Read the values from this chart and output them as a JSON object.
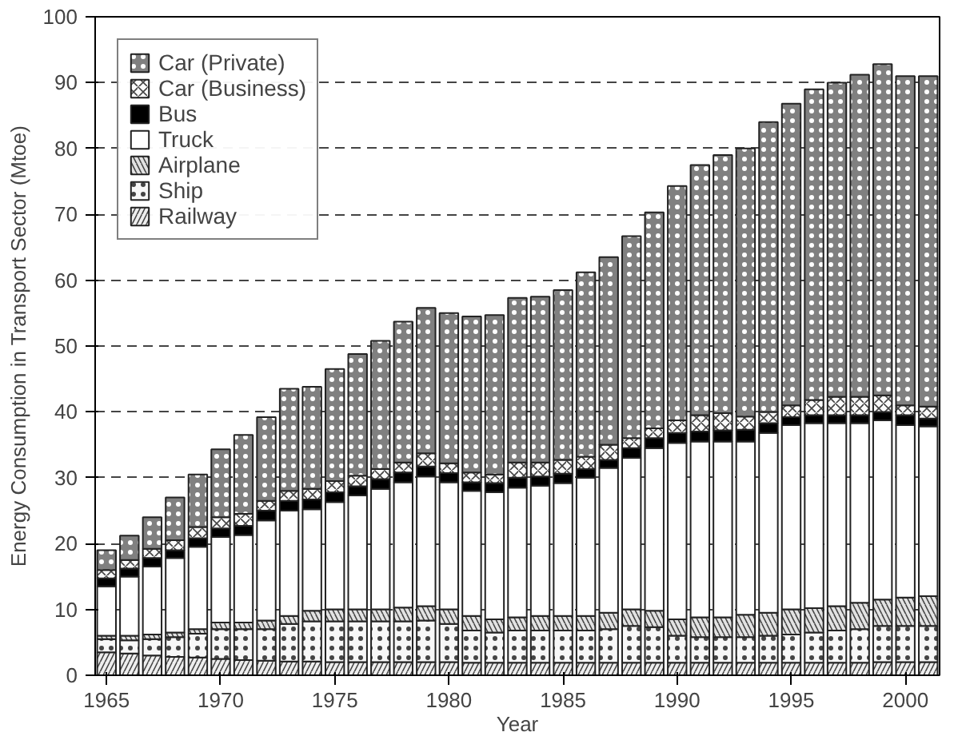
{
  "chart_data": {
    "type": "bar",
    "stacked": true,
    "xlabel": "Year",
    "ylabel": "Energy Consumption in Transport Sector (Mtoe)",
    "x": [
      1965,
      1966,
      1967,
      1968,
      1969,
      1970,
      1971,
      1972,
      1973,
      1974,
      1975,
      1976,
      1977,
      1978,
      1979,
      1980,
      1981,
      1982,
      1983,
      1984,
      1985,
      1986,
      1987,
      1988,
      1989,
      1990,
      1991,
      1992,
      1993,
      1994,
      1995,
      1996,
      1997,
      1998,
      1999,
      2000,
      2001
    ],
    "xlim": [
      1964.5,
      2001.5
    ],
    "xticks": [
      1965,
      1970,
      1975,
      1980,
      1985,
      1990,
      1995,
      2000
    ],
    "ylim": [
      0,
      100
    ],
    "yticks": [
      0,
      10,
      20,
      30,
      40,
      50,
      60,
      70,
      80,
      90,
      100
    ],
    "grid": "y",
    "legend": "top left",
    "series": [
      {
        "name": "Railway",
        "color": "#eeeeee",
        "values": [
          3.5,
          3.3,
          3.0,
          2.8,
          2.7,
          2.5,
          2.3,
          2.2,
          2.1,
          2.1,
          2.0,
          2.0,
          2.0,
          2.0,
          2.0,
          2.0,
          1.9,
          1.9,
          1.9,
          1.9,
          1.9,
          1.9,
          1.9,
          1.9,
          1.9,
          1.9,
          1.9,
          1.9,
          1.9,
          1.9,
          1.9,
          1.9,
          1.9,
          1.9,
          2.0,
          2.0,
          2.0
        ]
      },
      {
        "name": "Ship",
        "color": "#f7f7f7",
        "values": [
          2.0,
          2.0,
          2.5,
          3.0,
          3.6,
          4.5,
          4.7,
          4.8,
          5.7,
          6.1,
          6.2,
          6.2,
          6.2,
          6.2,
          6.3,
          5.8,
          4.9,
          4.6,
          4.9,
          4.9,
          4.9,
          4.9,
          5.1,
          5.6,
          5.4,
          4.1,
          3.9,
          3.9,
          3.9,
          4.1,
          4.3,
          4.6,
          4.9,
          5.1,
          5.5,
          5.5,
          5.5
        ]
      },
      {
        "name": "Airplane",
        "color": "#e2e2e2",
        "values": [
          0.5,
          0.7,
          0.7,
          0.7,
          0.7,
          1.0,
          1.0,
          1.3,
          1.2,
          1.6,
          1.8,
          1.8,
          1.8,
          2.1,
          2.2,
          2.2,
          2.2,
          2.0,
          2.0,
          2.2,
          2.2,
          2.2,
          2.5,
          2.5,
          2.5,
          2.5,
          3.0,
          3.0,
          3.4,
          3.5,
          3.8,
          3.7,
          3.7,
          4.0,
          4.0,
          4.3,
          4.5
        ]
      },
      {
        "name": "Truck",
        "color": "#ffffff",
        "values": [
          7.5,
          9.0,
          10.3,
          11.3,
          12.5,
          13.0,
          13.3,
          15.2,
          16.0,
          15.4,
          16.3,
          17.3,
          18.3,
          19.0,
          19.7,
          19.3,
          19.0,
          19.3,
          19.7,
          19.8,
          20.2,
          21.0,
          22.0,
          23.0,
          24.7,
          26.8,
          26.7,
          26.7,
          26.3,
          27.3,
          28.0,
          28.1,
          27.8,
          27.3,
          27.2,
          26.2,
          25.8
        ]
      },
      {
        "name": "Bus",
        "color": "#000000",
        "values": [
          1.2,
          1.2,
          1.3,
          1.2,
          1.3,
          1.3,
          1.4,
          1.5,
          1.5,
          1.5,
          1.5,
          1.4,
          1.5,
          1.5,
          1.5,
          1.4,
          1.3,
          1.4,
          1.5,
          1.4,
          1.4,
          1.3,
          1.2,
          1.5,
          1.5,
          1.5,
          1.5,
          1.7,
          1.8,
          1.5,
          1.2,
          1.2,
          1.2,
          1.2,
          1.3,
          1.5,
          1.2
        ]
      },
      {
        "name": "Car (Business)",
        "color": "#fbfbfb",
        "values": [
          1.3,
          1.3,
          1.4,
          1.5,
          1.7,
          1.7,
          1.8,
          1.5,
          1.5,
          1.6,
          1.7,
          1.6,
          1.5,
          1.5,
          2.0,
          1.5,
          1.5,
          1.3,
          2.3,
          2.1,
          2.1,
          1.9,
          2.3,
          1.5,
          1.5,
          1.9,
          2.5,
          2.6,
          2.0,
          1.7,
          1.8,
          2.3,
          2.8,
          2.8,
          2.5,
          1.5,
          1.8
        ]
      },
      {
        "name": "Car (Private)",
        "color": "#808080",
        "values": [
          3.0,
          3.7,
          4.8,
          6.5,
          8.0,
          10.3,
          12.0,
          12.7,
          15.5,
          15.5,
          17.0,
          18.5,
          19.5,
          21.4,
          22.1,
          22.8,
          23.7,
          24.2,
          25.0,
          25.2,
          25.8,
          28.0,
          28.5,
          30.7,
          32.8,
          35.6,
          38.0,
          39.2,
          40.7,
          44.0,
          45.8,
          47.2,
          47.7,
          48.9,
          50.3,
          50.0,
          50.2
        ]
      }
    ]
  }
}
